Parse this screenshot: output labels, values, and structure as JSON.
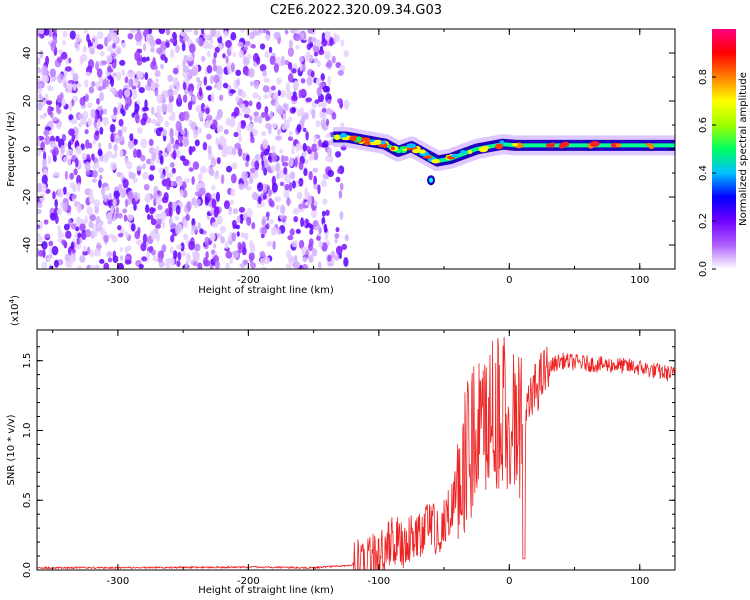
{
  "title": "C2E6.2022.320.09.34.G03",
  "chart_data": [
    {
      "type": "heatmap",
      "xlabel": "Height of straight line (km)",
      "ylabel": "Frequency (Hz)",
      "xlim": [
        -362,
        127
      ],
      "ylim": [
        -50,
        50
      ],
      "xticks": [
        -300,
        -200,
        -100,
        0,
        100
      ],
      "yticks": [
        -40,
        -20,
        0,
        20,
        40
      ],
      "noise_region_x": [
        -362,
        -135
      ],
      "signal_track": [
        {
          "x": -135,
          "y": 5
        },
        {
          "x": -125,
          "y": 5
        },
        {
          "x": -115,
          "y": 4
        },
        {
          "x": -105,
          "y": 3
        },
        {
          "x": -95,
          "y": 2
        },
        {
          "x": -85,
          "y": -1
        },
        {
          "x": -75,
          "y": 1
        },
        {
          "x": -65,
          "y": -2
        },
        {
          "x": -55,
          "y": -5
        },
        {
          "x": -45,
          "y": -4
        },
        {
          "x": -35,
          "y": -2
        },
        {
          "x": -25,
          "y": 0
        },
        {
          "x": -15,
          "y": 1
        },
        {
          "x": -5,
          "y": 2
        },
        {
          "x": 5,
          "y": 1.5
        },
        {
          "x": 20,
          "y": 1.5
        },
        {
          "x": 50,
          "y": 1.5
        },
        {
          "x": 80,
          "y": 1.5
        },
        {
          "x": 127,
          "y": 1.5
        }
      ],
      "colorbar": {
        "label": "Normalized spectral amplitude",
        "range": [
          0,
          1
        ],
        "ticks": [
          "0.0",
          "0.2",
          "0.4",
          "0.6",
          "0.8"
        ],
        "colors": [
          "#ffffff",
          "#b060ff",
          "#7000ff",
          "#0000ff",
          "#00c0ff",
          "#00ff60",
          "#a0ff00",
          "#ffff00",
          "#ff8000",
          "#ff0000",
          "#ff0080"
        ]
      }
    },
    {
      "type": "line",
      "xlabel": "Height of straight line (km)",
      "ylabel": "SNR (10 * v/v)",
      "yscale_label": "(x10",
      "yscale_exp": "4",
      "yscale_close": ")",
      "xlim": [
        -362,
        127
      ],
      "ylim": [
        0,
        1.72
      ],
      "xticks": [
        -300,
        -200,
        -100,
        0,
        100
      ],
      "yticks": [
        "0.0",
        "0.5",
        "1.0",
        "1.5"
      ],
      "line_color": "#ee2222",
      "series": [
        {
          "x": [
            -362,
            -300,
            -200,
            -150,
            -120,
            -110,
            -100,
            -95,
            -90,
            -85,
            -80,
            -75,
            -70,
            -65,
            -60,
            -55,
            -50,
            -45,
            -40,
            -35,
            -30,
            -25,
            -20,
            -15,
            -10,
            -5,
            0,
            5,
            10,
            15,
            20,
            25,
            30,
            35,
            40,
            50,
            60,
            70,
            80,
            90,
            100,
            110,
            127
          ],
          "values": [
            0.01,
            0.01,
            0.015,
            0.01,
            0.03,
            0.06,
            0.1,
            0.15,
            0.2,
            0.22,
            0.18,
            0.25,
            0.22,
            0.3,
            0.32,
            0.28,
            0.35,
            0.45,
            0.6,
            0.8,
            0.9,
            1.0,
            1.05,
            1.1,
            1.12,
            1.15,
            1.1,
            1.0,
            1.05,
            1.15,
            1.3,
            1.38,
            1.44,
            1.48,
            1.5,
            1.49,
            1.48,
            1.47,
            1.47,
            1.46,
            1.45,
            1.43,
            1.4
          ]
        }
      ]
    }
  ]
}
